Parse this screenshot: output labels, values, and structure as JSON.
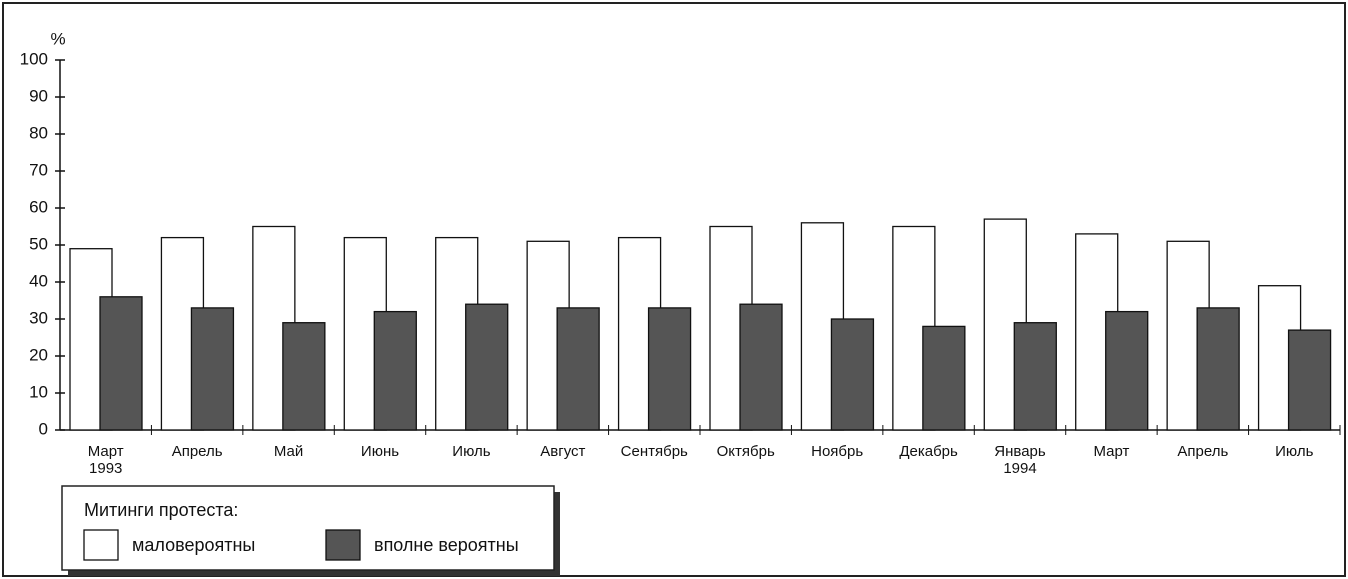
{
  "chart_data": {
    "type": "bar",
    "y_label": "%",
    "categories": [
      "Март 1993",
      "Апрель",
      "Май",
      "Июнь",
      "Июль",
      "Август",
      "Сентябрь",
      "Октябрь",
      "Ноябрь",
      "Декабрь",
      "Январь 1994",
      "Март",
      "Апрель",
      "Июль"
    ],
    "series": [
      {
        "name": "маловероятны",
        "color": "#ffffff",
        "values": [
          49,
          52,
          55,
          52,
          52,
          51,
          52,
          55,
          56,
          55,
          57,
          53,
          51,
          39
        ]
      },
      {
        "name": "вполне вероятны",
        "color": "#555555",
        "values": [
          36,
          33,
          29,
          32,
          34,
          33,
          33,
          34,
          30,
          28,
          29,
          32,
          33,
          27
        ]
      }
    ],
    "legend_title": "Митинги протеста:",
    "ylim": [
      0,
      100
    ],
    "yticks": [
      0,
      10,
      20,
      30,
      40,
      50,
      60,
      70,
      80,
      90,
      100
    ],
    "grid": false
  }
}
